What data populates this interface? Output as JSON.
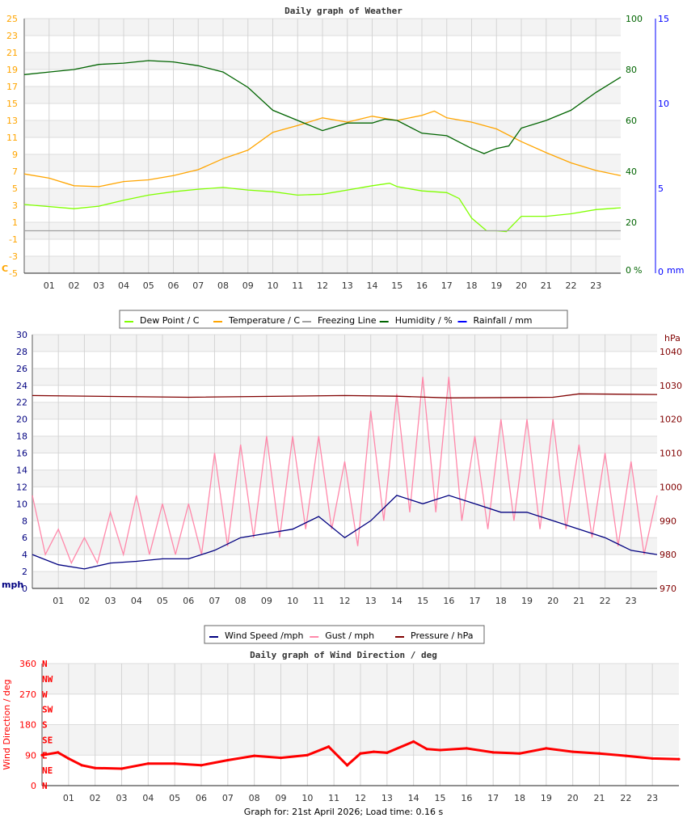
{
  "footer": "Graph for: 21st April 2026; Load time: 0.16 s",
  "chart_data": [
    {
      "type": "line",
      "title": "Daily graph of Weather",
      "x_ticks": [
        "01",
        "02",
        "03",
        "04",
        "05",
        "06",
        "07",
        "08",
        "09",
        "10",
        "11",
        "12",
        "13",
        "14",
        "15",
        "16",
        "17",
        "18",
        "19",
        "20",
        "21",
        "22",
        "23"
      ],
      "xlim": [
        0,
        24
      ],
      "left_axis": {
        "label": "C",
        "ylim": [
          -5,
          25
        ],
        "ticks": [
          25,
          23,
          21,
          19,
          17,
          15,
          13,
          11,
          9,
          7,
          5,
          3,
          1,
          -1,
          -3,
          -5
        ],
        "color": "#ffa500"
      },
      "right_axis": {
        "label": "%",
        "ylim": [
          0,
          100
        ],
        "ticks": [
          100,
          80,
          60,
          40,
          20,
          0
        ],
        "color": "#006400"
      },
      "right_axis2": {
        "label": "mm",
        "ylim": [
          0,
          15
        ],
        "ticks": [
          15,
          10,
          5,
          0
        ],
        "color": "#0000ff"
      },
      "grid": true,
      "legend": {
        "placement": "bottom",
        "entries": [
          "Dew Point / C",
          "Temperature / C",
          "Freezing Line",
          "Humidity / %",
          "Rainfall / mm"
        ]
      },
      "series": [
        {
          "name": "Dew Point / C",
          "color": "#80ff00",
          "axis": "left",
          "x": [
            0,
            2,
            3,
            4,
            5,
            6,
            7,
            8,
            9,
            10,
            11,
            12,
            13,
            14,
            14.7,
            15,
            16,
            17,
            17.5,
            18,
            18.6,
            19,
            19.4,
            20,
            21,
            22,
            23,
            24
          ],
          "y": [
            3.1,
            2.6,
            2.9,
            3.6,
            4.2,
            4.6,
            4.9,
            5.1,
            4.8,
            4.6,
            4.2,
            4.3,
            4.8,
            5.3,
            5.6,
            5.2,
            4.7,
            4.5,
            3.8,
            1.5,
            0,
            0,
            -0.1,
            1.7,
            1.7,
            2.0,
            2.5,
            2.7
          ]
        },
        {
          "name": "Temperature / C",
          "color": "#ffa500",
          "axis": "left",
          "x": [
            0,
            1,
            2,
            3,
            4,
            5,
            6,
            7,
            8,
            9,
            10,
            11,
            12,
            13,
            14,
            15,
            16,
            16.5,
            17,
            18,
            19,
            20,
            21,
            22,
            23,
            24
          ],
          "y": [
            6.7,
            6.2,
            5.3,
            5.2,
            5.8,
            6.0,
            6.5,
            7.2,
            8.5,
            9.5,
            11.6,
            12.4,
            13.3,
            12.8,
            13.5,
            13.0,
            13.6,
            14.1,
            13.3,
            12.8,
            12.0,
            10.5,
            9.2,
            8.0,
            7.1,
            6.5
          ]
        },
        {
          "name": "Freezing Line",
          "color": "#a0a0a0",
          "axis": "left",
          "x": [
            0,
            24
          ],
          "y": [
            0,
            0
          ]
        },
        {
          "name": "Humidity / %",
          "color": "#006400",
          "axis": "right",
          "x": [
            0,
            1,
            2,
            3,
            4,
            5,
            6,
            7,
            8,
            9,
            10,
            11,
            12,
            13,
            14,
            14.5,
            15,
            16,
            17,
            18,
            18.5,
            19,
            19.5,
            20,
            21,
            22,
            23,
            24
          ],
          "y": [
            78,
            79,
            80,
            82,
            82.5,
            83.5,
            83,
            81.5,
            79,
            73,
            64,
            60,
            56,
            59,
            59,
            60.5,
            60,
            55,
            54,
            49,
            47,
            49,
            50,
            57,
            60,
            64,
            71,
            77
          ]
        },
        {
          "name": "Rainfall / mm",
          "color": "#0000ff",
          "axis": "right2",
          "x": [
            0,
            24
          ],
          "y": [
            0,
            0
          ]
        }
      ]
    },
    {
      "type": "line",
      "title": "",
      "x_ticks": [
        "01",
        "02",
        "03",
        "04",
        "05",
        "06",
        "07",
        "08",
        "09",
        "10",
        "11",
        "12",
        "13",
        "14",
        "15",
        "16",
        "17",
        "18",
        "19",
        "20",
        "21",
        "22",
        "23"
      ],
      "xlim": [
        0,
        24
      ],
      "left_axis": {
        "label": "mph",
        "ylim": [
          0,
          30
        ],
        "ticks": [
          30,
          28,
          26,
          24,
          22,
          20,
          18,
          16,
          14,
          12,
          10,
          8,
          6,
          4,
          2,
          0
        ],
        "color": "#000080"
      },
      "right_axis": {
        "label": "hPa",
        "ylim": [
          970,
          1045
        ],
        "ticks": [
          1040,
          1030,
          1020,
          1010,
          1000,
          990,
          980,
          970
        ],
        "color": "#800000"
      },
      "grid": true,
      "legend": {
        "placement": "bottom",
        "entries": [
          "Wind Speed /mph",
          "Gust / mph",
          "Pressure / hPa"
        ]
      },
      "series": [
        {
          "name": "Gust / mph",
          "color": "#ff88aa",
          "axis": "left",
          "x": [
            0,
            0.5,
            1,
            1.5,
            2,
            2.5,
            3,
            3.5,
            4,
            4.5,
            5,
            5.5,
            6,
            6.5,
            7,
            7.5,
            8,
            8.5,
            9,
            9.5,
            10,
            10.5,
            11,
            11.5,
            12,
            12.5,
            13,
            13.5,
            14,
            14.5,
            15,
            15.5,
            16,
            16.5,
            17,
            17.5,
            18,
            18.5,
            19,
            19.5,
            20,
            20.5,
            21,
            21.5,
            22,
            22.5,
            23,
            23.5,
            24
          ],
          "y": [
            11,
            4,
            7,
            3,
            6,
            3,
            9,
            4,
            11,
            4,
            10,
            4,
            10,
            4,
            16,
            5,
            17,
            6,
            18,
            6,
            18,
            7,
            18,
            7,
            15,
            5,
            21,
            8,
            23,
            9,
            25,
            9,
            25,
            8,
            18,
            7,
            20,
            8,
            20,
            7,
            20,
            7,
            17,
            6,
            16,
            5,
            15,
            4,
            11
          ]
        },
        {
          "name": "Wind Speed /mph",
          "color": "#000080",
          "axis": "left",
          "x": [
            0,
            1,
            2,
            3,
            4,
            5,
            6,
            7,
            8,
            9,
            10,
            11,
            12,
            13,
            14,
            15,
            16,
            17,
            18,
            19,
            20,
            21,
            22,
            23,
            24
          ],
          "y": [
            4,
            2.8,
            2.3,
            3,
            3.2,
            3.5,
            3.5,
            4.5,
            6,
            6.5,
            7,
            8.5,
            6,
            8,
            11,
            10,
            11,
            10,
            9,
            9,
            8,
            7,
            6,
            4.5,
            4
          ]
        },
        {
          "name": "Pressure / hPa",
          "color": "#800000",
          "axis": "right",
          "x": [
            0,
            6,
            12,
            14,
            16,
            20,
            21,
            24
          ],
          "y": [
            1027,
            1026.5,
            1027,
            1026.8,
            1026.3,
            1026.5,
            1027.5,
            1027.3
          ]
        }
      ]
    },
    {
      "type": "scatter",
      "title": "Daily graph of Wind Direction / deg",
      "x_ticks": [
        "01",
        "02",
        "03",
        "04",
        "05",
        "06",
        "07",
        "08",
        "09",
        "10",
        "11",
        "12",
        "13",
        "14",
        "15",
        "16",
        "17",
        "18",
        "19",
        "20",
        "21",
        "22",
        "23"
      ],
      "xlim": [
        0,
        24
      ],
      "left_axis": {
        "label": "Wind Direction / deg",
        "ylim": [
          0,
          360
        ],
        "ticks": [
          360,
          270,
          180,
          90,
          0
        ],
        "color": "#ff0000"
      },
      "compass_labels": [
        "N",
        "NW",
        "W",
        "SW",
        "S",
        "SE",
        "E",
        "NE",
        "N"
      ],
      "grid": true,
      "series": [
        {
          "name": "Wind Direction / deg",
          "color": "#ff0000",
          "axis": "left",
          "x": [
            0,
            0.6,
            1,
            1.5,
            2,
            3,
            4,
            5,
            6,
            7,
            8,
            9,
            10,
            10.8,
            11.5,
            12,
            12.5,
            13,
            14,
            14.5,
            15,
            16,
            17,
            18,
            19,
            20,
            21,
            22,
            23,
            24
          ],
          "y": [
            90,
            98,
            80,
            60,
            52,
            50,
            65,
            65,
            60,
            75,
            88,
            82,
            90,
            115,
            60,
            95,
            100,
            97,
            130,
            108,
            105,
            110,
            98,
            95,
            110,
            100,
            95,
            88,
            80,
            78
          ]
        }
      ]
    }
  ]
}
